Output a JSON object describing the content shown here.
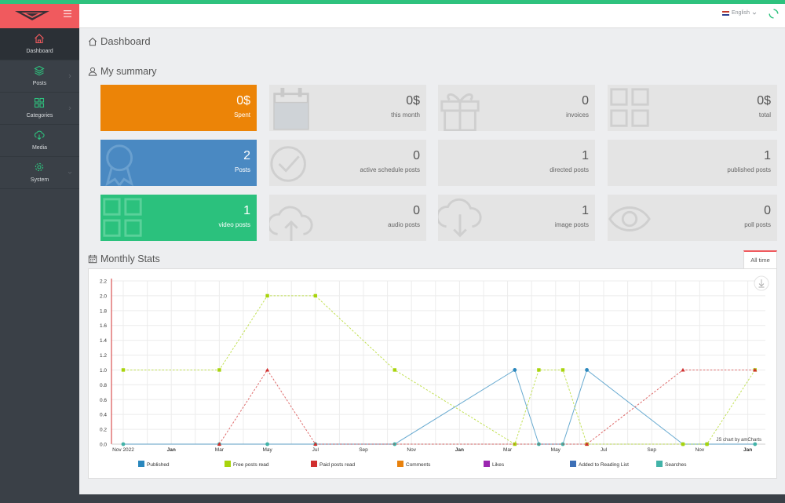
{
  "sidebar": {
    "items": [
      {
        "label": "Dashboard",
        "icon": "home-icon",
        "active": true
      },
      {
        "label": "Posts",
        "icon": "layers-icon",
        "active": false
      },
      {
        "label": "Categories",
        "icon": "grid-icon",
        "active": false
      },
      {
        "label": "Media",
        "icon": "cloud-download-icon",
        "active": false
      },
      {
        "label": "System",
        "icon": "gear-icon",
        "active": false
      }
    ]
  },
  "header": {
    "language": "English"
  },
  "page_title": "Dashboard",
  "summary": {
    "title": "My summary",
    "cards": [
      {
        "value": "0$",
        "label": "Spent",
        "style": "orange",
        "icon": "none"
      },
      {
        "value": "0$",
        "label": "this month",
        "style": "gray",
        "icon": "calendar-icon"
      },
      {
        "value": "0",
        "label": "invoices",
        "style": "gray",
        "icon": "gift-icon"
      },
      {
        "value": "0$",
        "label": "total",
        "style": "gray",
        "icon": "grid-icon"
      },
      {
        "value": "2",
        "label": "Posts",
        "style": "blue",
        "icon": "award-icon"
      },
      {
        "value": "0",
        "label": "active schedule posts",
        "style": "gray",
        "icon": "check-circle-icon"
      },
      {
        "value": "1",
        "label": "directed posts",
        "style": "gray",
        "icon": "none"
      },
      {
        "value": "1",
        "label": "published posts",
        "style": "gray",
        "icon": "none"
      },
      {
        "value": "1",
        "label": "video posts",
        "style": "green",
        "icon": "grid-icon"
      },
      {
        "value": "0",
        "label": "audio posts",
        "style": "gray",
        "icon": "cloud-upload-icon"
      },
      {
        "value": "1",
        "label": "image posts",
        "style": "gray",
        "icon": "cloud-download-icon"
      },
      {
        "value": "0",
        "label": "poll posts",
        "style": "gray",
        "icon": "eye-icon"
      }
    ]
  },
  "stats": {
    "title": "Monthly Stats",
    "tab": "All time",
    "credit": "JS chart by amCharts"
  },
  "chart_data": {
    "type": "line",
    "x": [
      "Nov 2022",
      "Jan",
      "Mar",
      "May",
      "Jul",
      "Sep",
      "Nov",
      "Jan",
      "Mar",
      "May",
      "Jul",
      "Sep",
      "Nov",
      "Jan"
    ],
    "x_bold": [
      false,
      true,
      false,
      false,
      false,
      false,
      false,
      true,
      false,
      false,
      false,
      false,
      false,
      true
    ],
    "ylim": [
      0,
      2.2
    ],
    "yticks": [
      "0.0",
      "0.2",
      "0.4",
      "0.6",
      "0.8",
      "1.0",
      "1.2",
      "1.4",
      "1.6",
      "1.8",
      "2.0",
      "2.2"
    ],
    "series": [
      {
        "name": "Published",
        "color": "#2a87bd",
        "dashed": false,
        "points": [
          [
            0,
            0
          ],
          [
            2,
            0
          ],
          [
            3,
            0
          ],
          [
            4,
            0
          ],
          [
            5.65,
            0
          ],
          [
            8.15,
            1
          ],
          [
            8.65,
            0
          ],
          [
            9.15,
            0
          ],
          [
            9.65,
            1
          ],
          [
            11.65,
            0
          ],
          [
            12.15,
            0
          ],
          [
            13.15,
            0
          ]
        ]
      },
      {
        "name": "Free posts read",
        "color": "#a8d40c",
        "dashed": true,
        "points": [
          [
            0,
            1
          ],
          [
            2,
            1
          ],
          [
            3,
            2
          ],
          [
            4,
            2
          ],
          [
            5.65,
            1
          ],
          [
            8.15,
            0
          ],
          [
            8.65,
            1
          ],
          [
            9.15,
            1
          ],
          [
            9.65,
            0
          ],
          [
            11.65,
            0
          ],
          [
            12.15,
            0
          ],
          [
            13.15,
            1
          ]
        ]
      },
      {
        "name": "Paid posts read",
        "color": "#d12f2f",
        "dashed": true,
        "points": [
          [
            2,
            0
          ],
          [
            3,
            1
          ],
          [
            4,
            0
          ],
          [
            9.65,
            0
          ],
          [
            11.65,
            1
          ],
          [
            13.15,
            1
          ]
        ]
      },
      {
        "name": "Comments",
        "color": "#e8810c",
        "dashed": false,
        "points": []
      },
      {
        "name": "Likes",
        "color": "#9b27b0",
        "dashed": false,
        "points": []
      },
      {
        "name": "Added to Reading List",
        "color": "#3d6fb6",
        "dashed": false,
        "points": []
      },
      {
        "name": "Searches",
        "color": "#42b3a8",
        "dashed": false,
        "points": []
      }
    ]
  }
}
